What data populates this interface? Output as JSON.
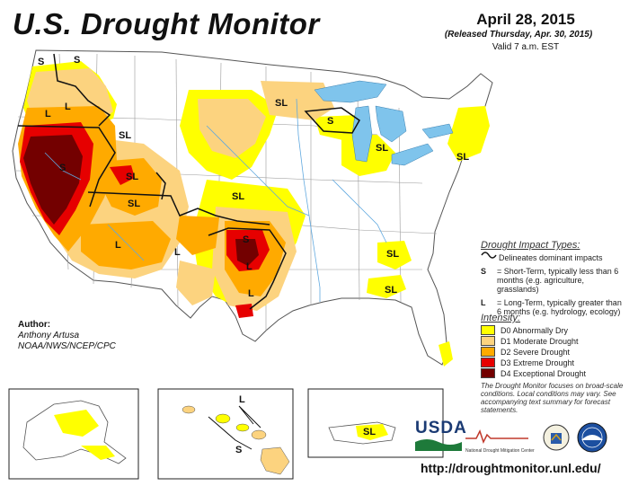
{
  "header": {
    "title": "U.S. Drought Monitor",
    "date": "April 28, 2015",
    "released": "(Released Thursday, Apr. 30, 2015)",
    "valid": "Valid 7 a.m. EST"
  },
  "map": {
    "impact_labels": [
      "S",
      "S",
      "L",
      "S",
      "SL",
      "SL",
      "SL",
      "S",
      "SL",
      "SL",
      "SL",
      "L",
      "L",
      "L",
      "SL",
      "SL",
      "L",
      "S",
      "L",
      "SL"
    ]
  },
  "author": {
    "heading": "Author:",
    "name": "Anthony Artusa",
    "org": "NOAA/NWS/NCEP/CPC"
  },
  "impact_legend": {
    "title": "Drought Impact Types:",
    "line_desc": "Delineates dominant impacts",
    "short_term_symbol": "S",
    "short_term": "= Short-Term, typically less than 6 months (e.g. agriculture, grasslands)",
    "long_term_symbol": "L",
    "long_term": "= Long-Term, typically greater than 6 months (e.g. hydrology, ecology)"
  },
  "intensity_legend": {
    "title": "Intensity:",
    "items": [
      {
        "label": "D0 Abnormally Dry",
        "color": "#ffff00"
      },
      {
        "label": "D1 Moderate Drought",
        "color": "#fcd37f"
      },
      {
        "label": "D2 Severe Drought",
        "color": "#ffaa00"
      },
      {
        "label": "D3 Extreme Drought",
        "color": "#e60000"
      },
      {
        "label": "D4 Exceptional Drought",
        "color": "#730000"
      }
    ]
  },
  "note": "The Drought Monitor focuses on broad-scale conditions. Local conditions may vary. See accompanying text summary for forecast statements.",
  "insets": {
    "hawaii_labels": [
      "L",
      "S"
    ],
    "puerto_rico_label": "SL"
  },
  "logos": {
    "usda": "USDA",
    "ndmc": "National Drought Mitigation Center"
  },
  "url": "http://droughtmonitor.unl.edu/",
  "colors": {
    "water": "#7fc4ec",
    "boundary": "#9a9a9a",
    "impact_line": "#111111"
  }
}
